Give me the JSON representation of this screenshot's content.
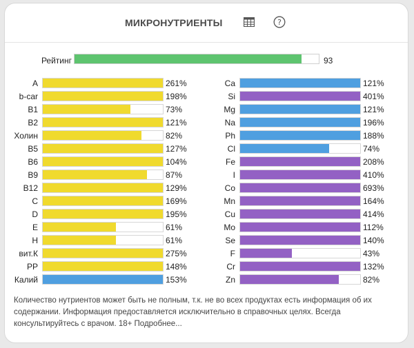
{
  "header": {
    "title": "МИКРОНУТРИЕНТЫ"
  },
  "colors": {
    "yellow": "#f0da2e",
    "blue": "#4f9fe0",
    "purple": "#9361c4",
    "green": "#5ec46f"
  },
  "rating": {
    "label": "Рейтинг",
    "value": "93",
    "percent": 93
  },
  "left": [
    {
      "label": "A",
      "value": "261%",
      "pct": 261,
      "color": "yellow"
    },
    {
      "label": "b-car",
      "value": "198%",
      "pct": 198,
      "color": "yellow"
    },
    {
      "label": "B1",
      "value": "73%",
      "pct": 73,
      "color": "yellow"
    },
    {
      "label": "B2",
      "value": "121%",
      "pct": 121,
      "color": "yellow"
    },
    {
      "label": "Холин",
      "value": "82%",
      "pct": 82,
      "color": "yellow"
    },
    {
      "label": "B5",
      "value": "127%",
      "pct": 127,
      "color": "yellow"
    },
    {
      "label": "B6",
      "value": "104%",
      "pct": 104,
      "color": "yellow"
    },
    {
      "label": "B9",
      "value": "87%",
      "pct": 87,
      "color": "yellow"
    },
    {
      "label": "B12",
      "value": "129%",
      "pct": 129,
      "color": "yellow"
    },
    {
      "label": "C",
      "value": "169%",
      "pct": 169,
      "color": "yellow"
    },
    {
      "label": "D",
      "value": "195%",
      "pct": 195,
      "color": "yellow"
    },
    {
      "label": "E",
      "value": "61%",
      "pct": 61,
      "color": "yellow"
    },
    {
      "label": "H",
      "value": "61%",
      "pct": 61,
      "color": "yellow"
    },
    {
      "label": "вит.К",
      "value": "275%",
      "pct": 275,
      "color": "yellow"
    },
    {
      "label": "PP",
      "value": "148%",
      "pct": 148,
      "color": "yellow"
    },
    {
      "label": "Калий",
      "value": "153%",
      "pct": 153,
      "color": "blue"
    }
  ],
  "right": [
    {
      "label": "Ca",
      "value": "121%",
      "pct": 121,
      "color": "blue"
    },
    {
      "label": "Si",
      "value": "401%",
      "pct": 401,
      "color": "purple"
    },
    {
      "label": "Mg",
      "value": "121%",
      "pct": 121,
      "color": "blue"
    },
    {
      "label": "Na",
      "value": "196%",
      "pct": 196,
      "color": "blue"
    },
    {
      "label": "Ph",
      "value": "188%",
      "pct": 188,
      "color": "blue"
    },
    {
      "label": "Cl",
      "value": "74%",
      "pct": 74,
      "color": "blue"
    },
    {
      "label": "Fe",
      "value": "208%",
      "pct": 208,
      "color": "purple"
    },
    {
      "label": "I",
      "value": "410%",
      "pct": 410,
      "color": "purple"
    },
    {
      "label": "Co",
      "value": "693%",
      "pct": 693,
      "color": "purple"
    },
    {
      "label": "Mn",
      "value": "164%",
      "pct": 164,
      "color": "purple"
    },
    {
      "label": "Cu",
      "value": "414%",
      "pct": 414,
      "color": "purple"
    },
    {
      "label": "Mo",
      "value": "112%",
      "pct": 112,
      "color": "purple"
    },
    {
      "label": "Se",
      "value": "140%",
      "pct": 140,
      "color": "purple"
    },
    {
      "label": "F",
      "value": "43%",
      "pct": 43,
      "color": "purple"
    },
    {
      "label": "Cr",
      "value": "132%",
      "pct": 132,
      "color": "purple"
    },
    {
      "label": "Zn",
      "value": "82%",
      "pct": 82,
      "color": "purple"
    }
  ],
  "footer": {
    "text": "Количество нутриентов может быть не полным, т.к. не во всех продуктах есть информация об их содержании. Информация предоставляется исключительно в справочных целях. Всегда консультируйтесь с врачом. 18+ Подробнее..."
  }
}
